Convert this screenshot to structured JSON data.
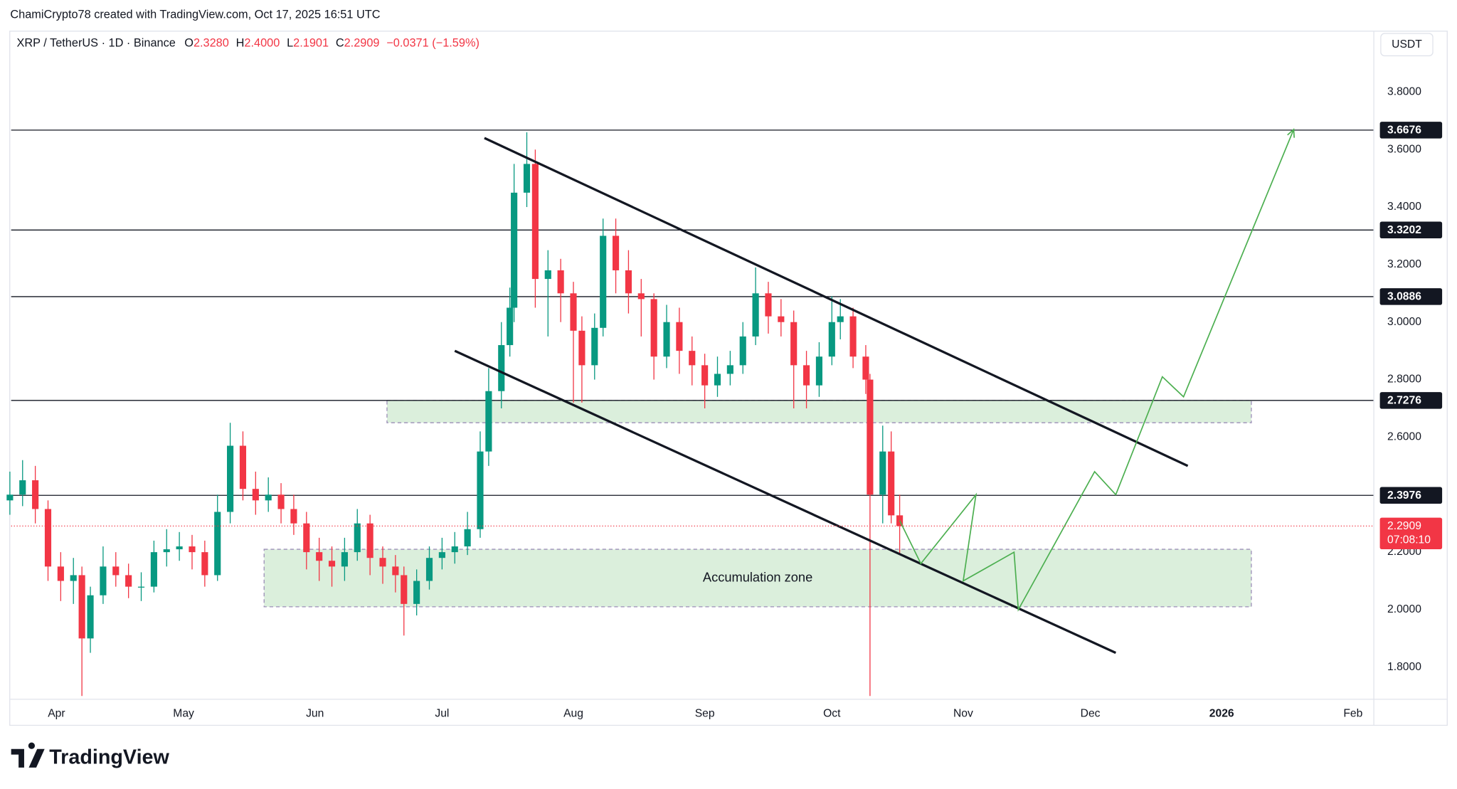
{
  "header": "ChamiCrypto78 created with TradingView.com, Oct 17, 2025 16:51 UTC",
  "brand": "TradingView",
  "currency": "USDT",
  "chart_data": {
    "type": "candlestick",
    "symbol": "XRP / TetherUS · 1D · Binance",
    "ohlc_legend": {
      "open_label": "O",
      "open": "2.3280",
      "high_label": "H",
      "high": "2.4000",
      "low_label": "L",
      "low": "2.1901",
      "close_label": "C",
      "close": "2.2909",
      "change": "−0.0371 (−1.59%)"
    },
    "x": [
      -11,
      -8,
      -5,
      -2,
      1,
      4,
      6,
      8,
      11,
      14,
      17,
      20,
      23,
      26,
      29,
      32,
      35,
      38,
      41,
      44,
      47,
      50,
      53,
      56,
      59,
      62,
      65,
      68,
      71,
      74,
      77,
      80,
      82,
      85,
      88,
      91,
      94,
      97,
      100,
      102,
      105,
      107,
      108,
      111,
      113,
      116,
      119,
      122,
      124,
      127,
      129,
      132,
      135,
      138,
      141,
      144,
      147,
      150,
      153,
      156,
      159,
      162,
      165,
      168,
      171,
      174,
      177,
      180,
      183,
      185,
      188,
      191,
      192,
      195,
      197,
      199
    ],
    "open": [
      2.38,
      2.4,
      2.45,
      2.35,
      2.15,
      2.1,
      2.12,
      1.9,
      2.05,
      2.15,
      2.12,
      2.08,
      2.08,
      2.2,
      2.21,
      2.22,
      2.2,
      2.12,
      2.34,
      2.57,
      2.42,
      2.38,
      2.4,
      2.35,
      2.3,
      2.2,
      2.17,
      2.15,
      2.2,
      2.3,
      2.18,
      2.15,
      2.12,
      2.02,
      2.1,
      2.18,
      2.2,
      2.22,
      2.28,
      2.55,
      2.76,
      2.92,
      3.05,
      3.45,
      3.55,
      3.15,
      3.18,
      3.1,
      2.97,
      2.85,
      2.98,
      3.3,
      3.18,
      3.1,
      3.08,
      2.88,
      3.0,
      2.9,
      2.85,
      2.78,
      2.82,
      2.85,
      2.95,
      3.1,
      3.02,
      3.0,
      2.85,
      2.78,
      2.88,
      3.0,
      3.02,
      2.88,
      2.8,
      2.4,
      2.55,
      2.328
    ],
    "high": [
      2.48,
      2.52,
      2.5,
      2.38,
      2.2,
      2.18,
      2.15,
      2.08,
      2.22,
      2.2,
      2.16,
      2.13,
      2.24,
      2.28,
      2.27,
      2.26,
      2.24,
      2.4,
      2.65,
      2.62,
      2.48,
      2.46,
      2.44,
      2.4,
      2.34,
      2.25,
      2.22,
      2.25,
      2.35,
      2.33,
      2.22,
      2.19,
      2.15,
      2.14,
      2.22,
      2.25,
      2.27,
      2.34,
      2.62,
      2.84,
      3.0,
      3.12,
      3.55,
      3.66,
      3.6,
      3.25,
      3.22,
      3.14,
      3.02,
      3.03,
      3.36,
      3.36,
      3.25,
      3.15,
      3.1,
      3.06,
      3.05,
      2.95,
      2.89,
      2.88,
      2.9,
      3.0,
      3.19,
      3.14,
      3.08,
      3.04,
      2.9,
      2.93,
      3.09,
      3.08,
      3.05,
      2.92,
      2.82,
      2.64,
      2.62,
      2.4
    ],
    "low": [
      2.33,
      2.36,
      2.3,
      2.1,
      2.03,
      2.02,
      1.7,
      1.85,
      2.02,
      2.08,
      2.04,
      2.03,
      2.06,
      2.15,
      2.17,
      2.14,
      2.08,
      2.1,
      2.3,
      2.38,
      2.33,
      2.34,
      2.3,
      2.26,
      2.14,
      2.1,
      2.08,
      2.1,
      2.17,
      2.12,
      2.09,
      2.06,
      1.91,
      1.98,
      2.07,
      2.14,
      2.16,
      2.19,
      2.25,
      2.5,
      2.7,
      2.88,
      3.0,
      3.4,
      3.05,
      2.95,
      3.0,
      2.72,
      2.72,
      2.8,
      2.95,
      3.1,
      3.03,
      2.95,
      2.8,
      2.84,
      2.82,
      2.78,
      2.7,
      2.74,
      2.78,
      2.82,
      2.92,
      2.96,
      2.95,
      2.7,
      2.7,
      2.74,
      2.85,
      2.94,
      2.84,
      2.75,
      1.7,
      2.3,
      2.3,
      2.1901
    ],
    "close": [
      2.4,
      2.45,
      2.35,
      2.15,
      2.1,
      2.12,
      1.9,
      2.05,
      2.15,
      2.12,
      2.08,
      2.08,
      2.2,
      2.21,
      2.22,
      2.2,
      2.12,
      2.34,
      2.57,
      2.42,
      2.38,
      2.4,
      2.35,
      2.3,
      2.2,
      2.17,
      2.15,
      2.2,
      2.3,
      2.18,
      2.15,
      2.12,
      2.02,
      2.1,
      2.18,
      2.2,
      2.22,
      2.28,
      2.55,
      2.76,
      2.92,
      3.05,
      3.45,
      3.55,
      3.15,
      3.18,
      3.1,
      2.97,
      2.85,
      2.98,
      3.3,
      3.18,
      3.1,
      3.08,
      2.88,
      3.0,
      2.9,
      2.85,
      2.78,
      2.82,
      2.85,
      2.95,
      3.1,
      3.02,
      3.0,
      2.85,
      2.78,
      2.88,
      3.0,
      3.02,
      2.88,
      2.8,
      2.4,
      2.55,
      2.328,
      2.2909
    ],
    "last_price": 2.2909,
    "countdown": "07:08:10",
    "up_color": "#089981",
    "down_color": "#f23645",
    "xlim": [
      -10.7,
      310.8
    ],
    "ylim": [
      1.69,
      4.01
    ],
    "xticks": [
      {
        "value": 0,
        "label": "Apr"
      },
      {
        "value": 30,
        "label": "May"
      },
      {
        "value": 61,
        "label": "Jun"
      },
      {
        "value": 91,
        "label": "Jul"
      },
      {
        "value": 122,
        "label": "Aug"
      },
      {
        "value": 153,
        "label": "Sep"
      },
      {
        "value": 183,
        "label": "Oct"
      },
      {
        "value": 214,
        "label": "Nov"
      },
      {
        "value": 244,
        "label": "Dec"
      },
      {
        "value": 275,
        "label": "2026"
      },
      {
        "value": 306,
        "label": "Feb"
      }
    ],
    "yticks": [
      {
        "value": 1.8,
        "label": "1.8000"
      },
      {
        "value": 2.0,
        "label": "2.0000"
      },
      {
        "value": 2.2,
        "label": "2.2000"
      },
      {
        "value": 2.4,
        "label": "2.4000"
      },
      {
        "value": 2.6,
        "label": "2.6000"
      },
      {
        "value": 2.8,
        "label": "2.8000"
      },
      {
        "value": 3.0,
        "label": "3.0000"
      },
      {
        "value": 3.2,
        "label": "3.2000"
      },
      {
        "value": 3.4,
        "label": "3.4000"
      },
      {
        "value": 3.6,
        "label": "3.6000"
      },
      {
        "value": 3.8,
        "label": "3.8000"
      }
    ],
    "grid": true,
    "levels": [
      3.6676,
      3.3202,
      3.0886,
      2.7276,
      2.3976
    ],
    "zones": [
      {
        "x": [
          78,
          282
        ],
        "y": [
          2.65,
          2.7276
        ]
      },
      {
        "x": [
          49,
          282
        ],
        "y": [
          2.01,
          2.21
        ],
        "label": "Accumulation zone"
      }
    ],
    "trendlines": [
      {
        "x": [
          101,
          267
        ],
        "y": [
          3.64,
          2.5
        ]
      },
      {
        "x": [
          94,
          250
        ],
        "y": [
          2.9,
          1.85
        ]
      }
    ],
    "projection": {
      "color": "#4caf50",
      "x": [
        199,
        204,
        217,
        214,
        226,
        227,
        245,
        250,
        261,
        266,
        292
      ],
      "y": [
        2.31,
        2.16,
        2.4,
        2.1,
        2.2,
        2.0,
        2.48,
        2.4,
        2.81,
        2.74,
        3.67
      ]
    }
  }
}
